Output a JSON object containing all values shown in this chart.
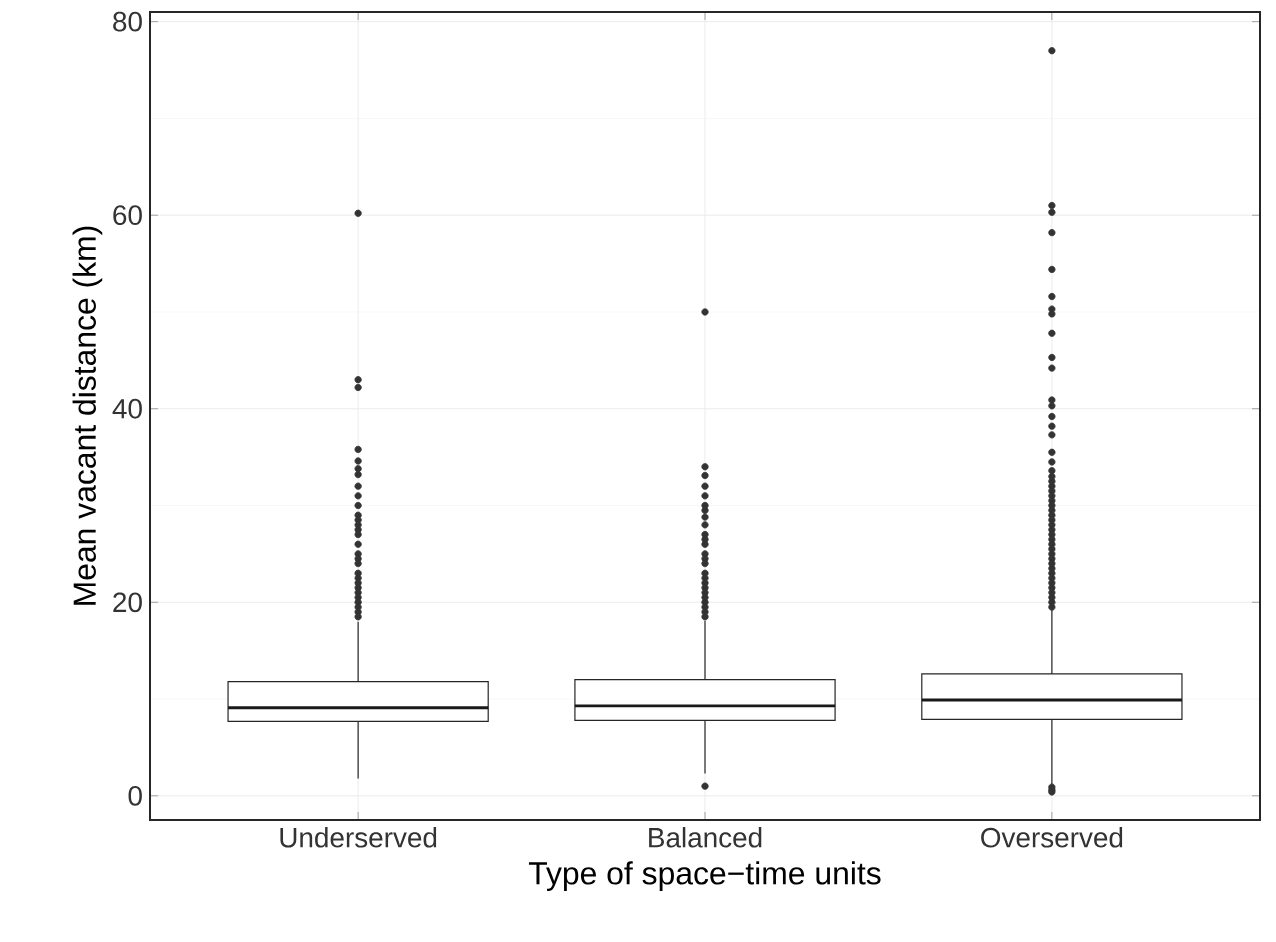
{
  "chart_data": {
    "type": "box",
    "xlabel": "Type of space−time units",
    "ylabel": "Mean vacant distance (km)",
    "categories": [
      "Underserved",
      "Balanced",
      "Overserved"
    ],
    "boxes": [
      {
        "low": 1.8,
        "q1": 7.7,
        "median": 9.1,
        "q3": 11.8,
        "high": 18.0,
        "outliers": [
          60.2,
          43.0,
          42.2,
          35.8,
          34.6,
          33.8,
          33.2,
          32,
          31,
          30,
          29,
          28.5,
          28,
          27.5,
          27,
          26,
          25,
          24.5,
          24,
          23,
          22.5,
          22,
          21.5,
          21,
          20.5,
          20,
          19.5,
          19,
          18.5
        ]
      },
      {
        "low": 2.3,
        "q1": 7.8,
        "median": 9.3,
        "q3": 12.0,
        "high": 18.1,
        "outliers": [
          50.0,
          34.0,
          33.1,
          32,
          31,
          30,
          29.5,
          28.8,
          28,
          27,
          26.5,
          26,
          25,
          24.5,
          24,
          23,
          22.5,
          22,
          21.5,
          21,
          20.5,
          20,
          19.5,
          19,
          18.5,
          1.0
        ]
      },
      {
        "low": 1.2,
        "q1": 7.9,
        "median": 9.9,
        "q3": 12.6,
        "high": 19.2,
        "outliers": [
          77.0,
          61.0,
          60.3,
          58.2,
          54.4,
          51.6,
          50.3,
          49.8,
          47.8,
          45.3,
          44.2,
          40.9,
          40.3,
          39.2,
          38.2,
          37.3,
          35.5,
          34.5,
          33.6,
          33,
          32.5,
          32,
          31.5,
          31,
          30.5,
          30,
          29.5,
          29,
          28.5,
          28,
          27.5,
          27,
          26.5,
          26,
          25.5,
          25,
          24.5,
          24,
          23.5,
          23,
          22.5,
          22,
          21.5,
          21,
          20.5,
          20,
          19.5,
          0.9,
          0.6,
          0.4
        ]
      }
    ],
    "ylim": [
      -2.5,
      81
    ],
    "yticks": [
      0,
      20,
      40,
      60,
      80
    ],
    "grid": true
  }
}
